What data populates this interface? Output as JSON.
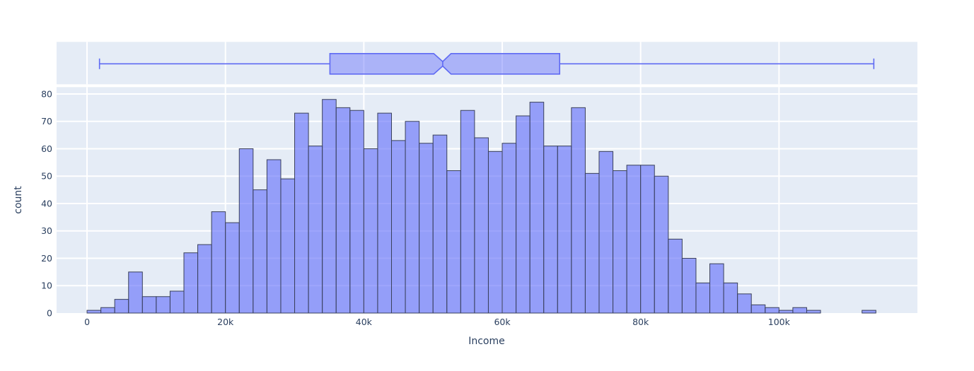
{
  "chart_data": {
    "type": "bar",
    "subtype": "histogram_with_marginal_box",
    "title": "",
    "xlabel": "Income",
    "ylabel": "count",
    "legend": "none",
    "grid": "on",
    "bin_start": 0,
    "bin_width": 2000,
    "counts": [
      1,
      2,
      5,
      15,
      6,
      6,
      8,
      22,
      25,
      37,
      33,
      60,
      45,
      56,
      49,
      73,
      61,
      78,
      75,
      74,
      60,
      73,
      63,
      70,
      62,
      65,
      52,
      74,
      64,
      59,
      62,
      72,
      77,
      61,
      61,
      75,
      51,
      59,
      52,
      54,
      54,
      50,
      27,
      20,
      11,
      18,
      11,
      7,
      3,
      2,
      1,
      2,
      1,
      0,
      0,
      0,
      1
    ],
    "total_observations": 2205,
    "x_tick_values": [
      0,
      20000,
      40000,
      60000,
      80000,
      100000
    ],
    "x_tick_labels": [
      "0",
      "20k",
      "40k",
      "60k",
      "80k",
      "100k"
    ],
    "y_tick_values": [
      0,
      10,
      20,
      30,
      40,
      50,
      60,
      70,
      80
    ],
    "y_tick_labels": [
      "0",
      "10",
      "20",
      "30",
      "40",
      "50",
      "60",
      "70",
      "80"
    ],
    "xlim": [
      -4400,
      120000
    ],
    "ylim": [
      0,
      82.5
    ],
    "box_stats": {
      "min": 1800,
      "q1": 35100,
      "median": 51400,
      "q3": 68300,
      "max": 113700,
      "notch_low": 50100,
      "notch_high": 52600
    },
    "colors": {
      "plot_background": "#E5ECF6",
      "gridline": "#FFFFFF",
      "bar_fill": "rgba(99,110,250,0.62)",
      "bar_border": "#3A415C",
      "box_line": "#5F6AF3",
      "box_fill": "rgba(99,110,250,0.45)",
      "text": "#2A3F5F"
    }
  }
}
